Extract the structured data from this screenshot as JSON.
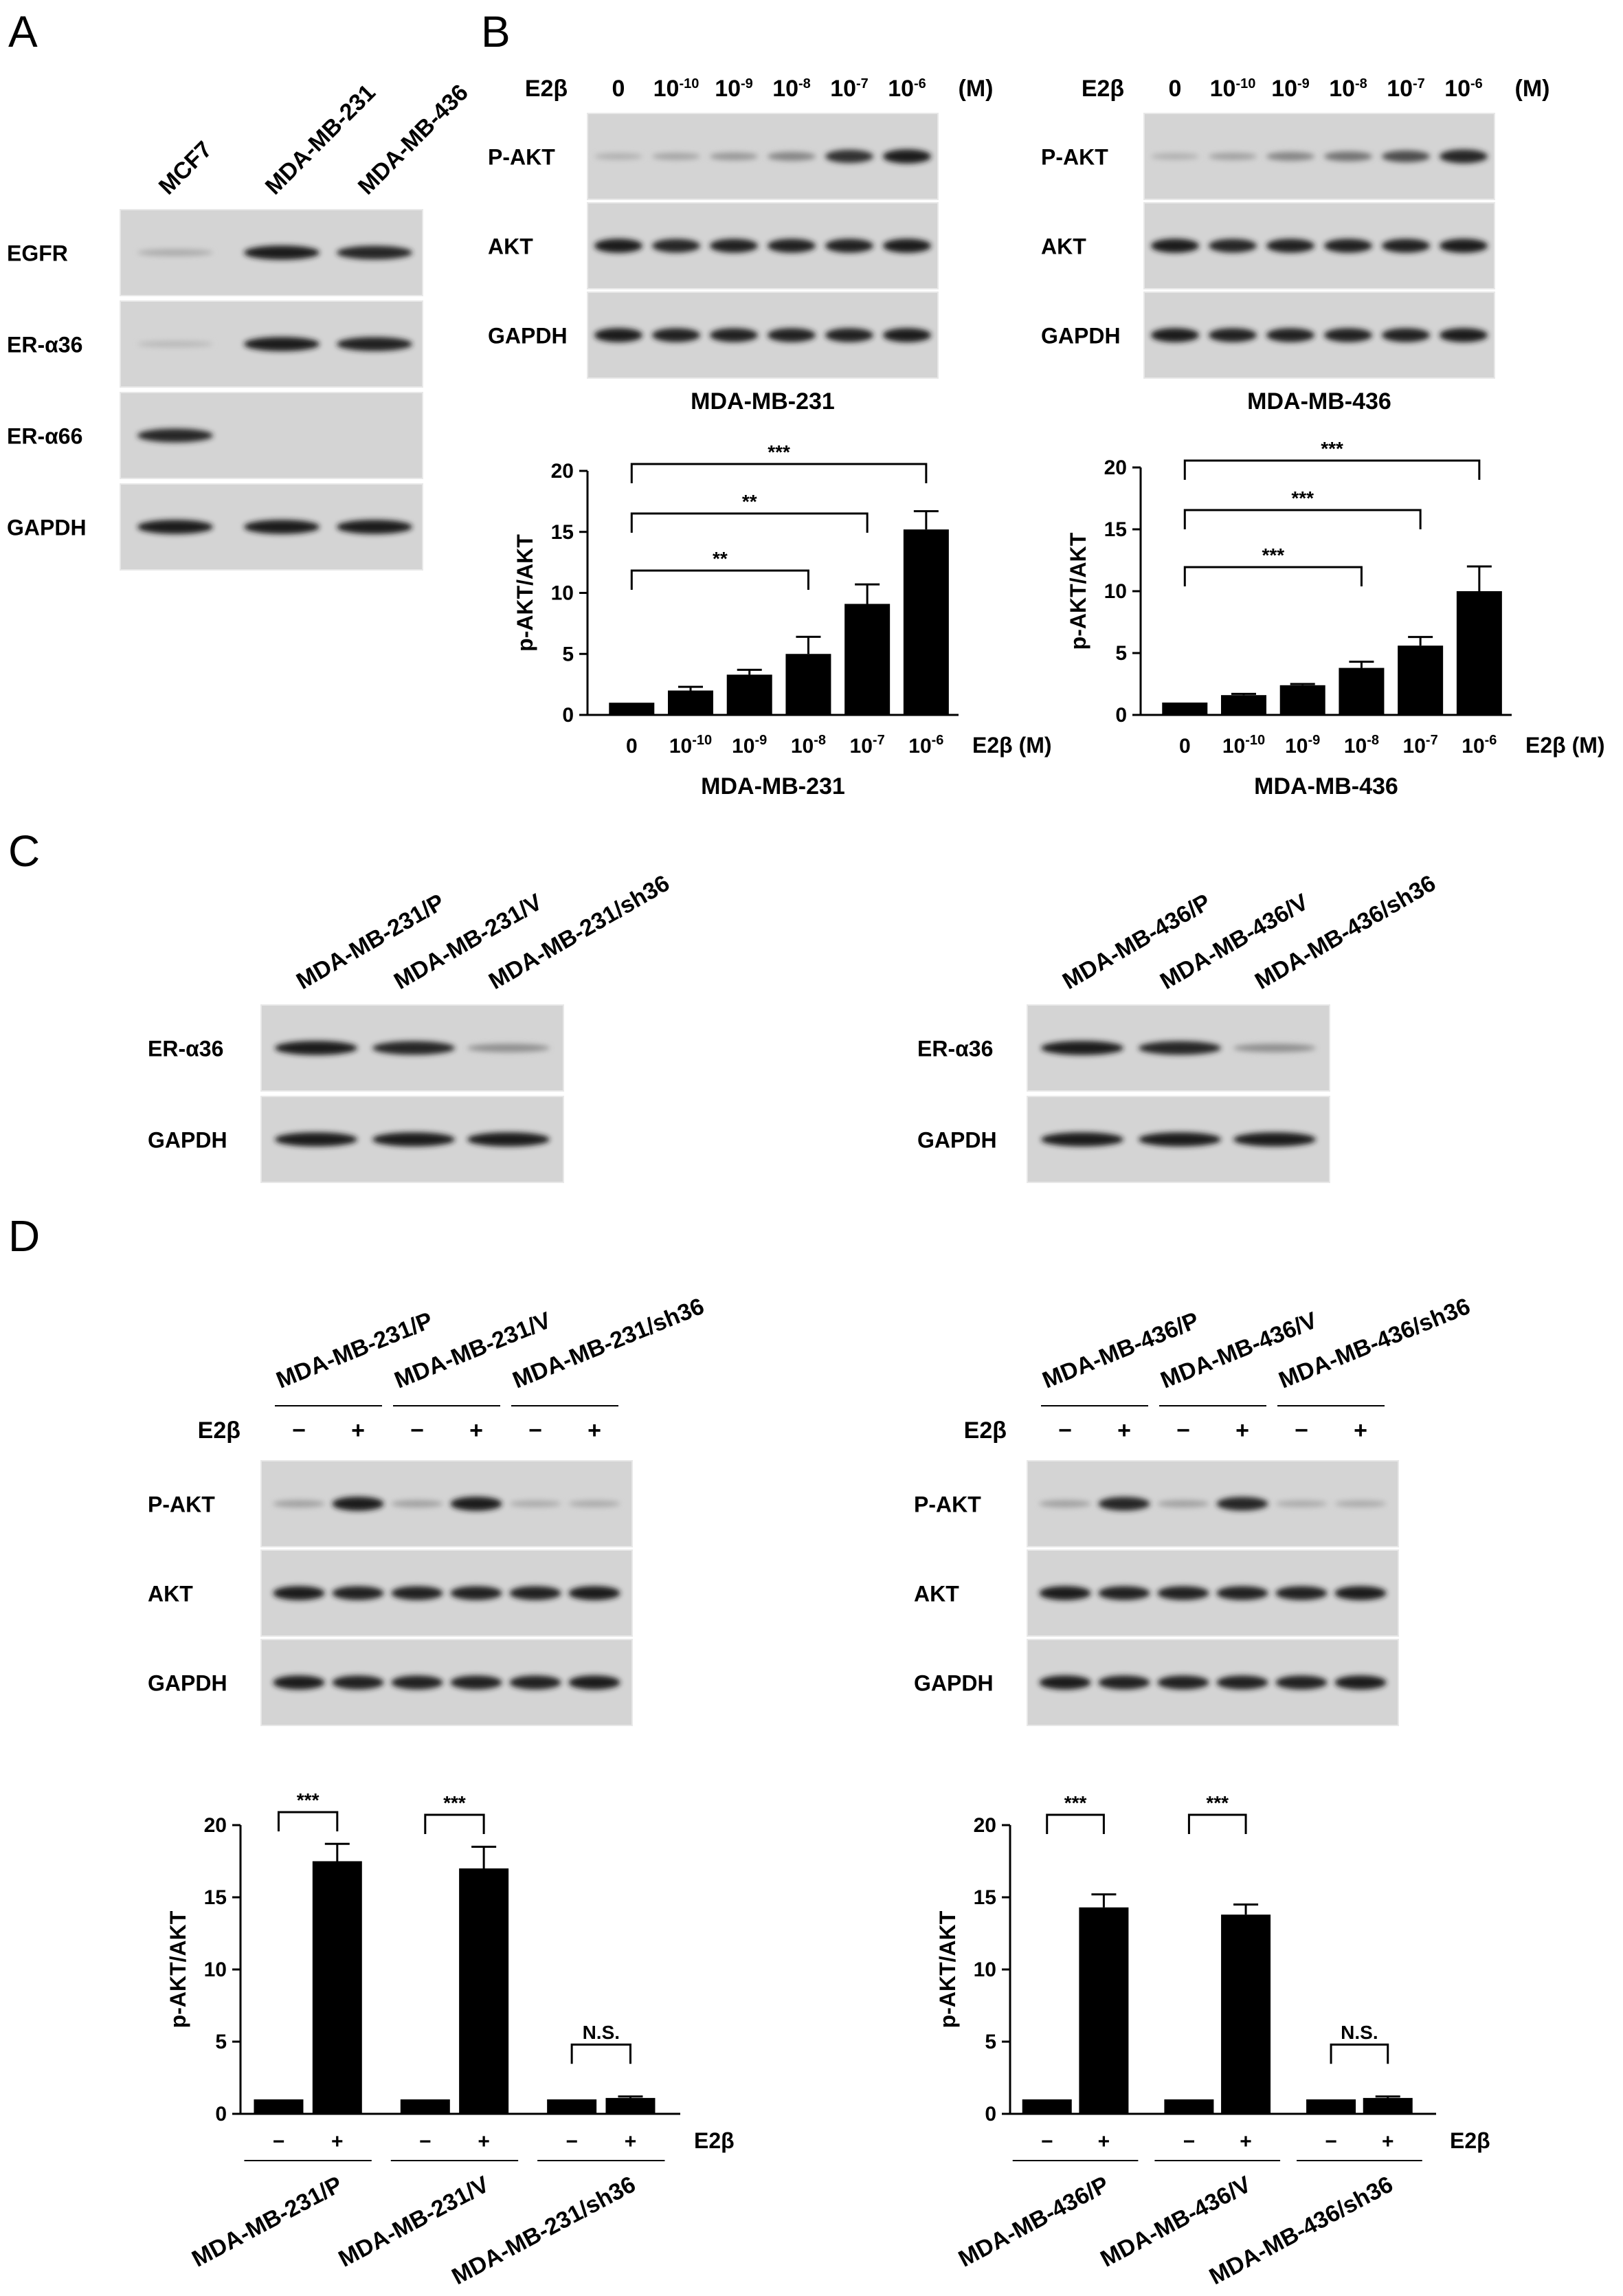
{
  "panels": {
    "A": "A",
    "B": "B",
    "C": "C",
    "D": "D"
  },
  "panelA": {
    "lanes": [
      "MCF7",
      "MDA-MB-231",
      "MDA-MB-436"
    ],
    "rows": [
      "EGFR",
      "ER-α36",
      "ER-α66",
      "GAPDH"
    ],
    "intensity": [
      [
        0.15,
        0.9,
        0.85
      ],
      [
        0.08,
        0.9,
        0.88
      ],
      [
        0.85,
        0.0,
        0.0
      ],
      [
        0.9,
        0.9,
        0.9
      ]
    ]
  },
  "panelB": {
    "treatment_label": "E2β",
    "unit": "(M)",
    "doses": [
      "0",
      "10",
      "10",
      "10",
      "10",
      "10"
    ],
    "exponents": [
      "",
      "-10",
      "-9",
      "-8",
      "-7",
      "-6"
    ],
    "rows": [
      "P-AKT",
      "AKT",
      "GAPDH"
    ],
    "blots": [
      {
        "cell_line": "MDA-MB-231",
        "intensity": [
          [
            0.12,
            0.18,
            0.25,
            0.35,
            0.8,
            0.9
          ],
          [
            0.9,
            0.85,
            0.88,
            0.88,
            0.88,
            0.9
          ],
          [
            0.9,
            0.88,
            0.88,
            0.88,
            0.88,
            0.9
          ]
        ]
      },
      {
        "cell_line": "MDA-MB-436",
        "intensity": [
          [
            0.12,
            0.2,
            0.35,
            0.45,
            0.65,
            0.85
          ],
          [
            0.9,
            0.85,
            0.88,
            0.88,
            0.88,
            0.9
          ],
          [
            0.9,
            0.88,
            0.88,
            0.88,
            0.88,
            0.9
          ]
        ]
      }
    ]
  },
  "panelC": {
    "row_labels": [
      "ER-α36",
      "GAPDH"
    ],
    "blots": [
      {
        "lanes": [
          "MDA-MB-231/P",
          "MDA-MB-231/V",
          "MDA-MB-231/sh36"
        ],
        "intensity": [
          [
            0.9,
            0.85,
            0.3
          ],
          [
            0.9,
            0.9,
            0.9
          ]
        ]
      },
      {
        "lanes": [
          "MDA-MB-436/P",
          "MDA-MB-436/V",
          "MDA-MB-436/sh36"
        ],
        "intensity": [
          [
            0.9,
            0.85,
            0.3
          ],
          [
            0.9,
            0.9,
            0.9
          ]
        ]
      }
    ]
  },
  "panelD": {
    "treatment_label": "E2β",
    "signs": [
      "−",
      "+"
    ],
    "rows": [
      "P-AKT",
      "AKT",
      "GAPDH"
    ],
    "blots": [
      {
        "groups": [
          "MDA-MB-231/P",
          "MDA-MB-231/V",
          "MDA-MB-231/sh36"
        ],
        "intensity": [
          [
            0.2,
            0.9,
            0.2,
            0.9,
            0.15,
            0.15
          ],
          [
            0.9,
            0.88,
            0.88,
            0.88,
            0.88,
            0.9
          ],
          [
            0.9,
            0.88,
            0.88,
            0.88,
            0.88,
            0.9
          ]
        ]
      },
      {
        "groups": [
          "MDA-MB-436/P",
          "MDA-MB-436/V",
          "MDA-MB-436/sh36"
        ],
        "intensity": [
          [
            0.2,
            0.85,
            0.2,
            0.85,
            0.15,
            0.15
          ],
          [
            0.9,
            0.88,
            0.88,
            0.88,
            0.88,
            0.9
          ],
          [
            0.9,
            0.88,
            0.88,
            0.88,
            0.88,
            0.9
          ]
        ]
      }
    ]
  },
  "chart_data": [
    {
      "type": "bar",
      "panel": "B",
      "cell_line": "MDA-MB-231",
      "xlabel": "E2β (M)",
      "ylabel": "p-AKT/AKT",
      "categories": [
        "0",
        "10-10",
        "10-9",
        "10-8",
        "10-7",
        "10-6"
      ],
      "values": [
        1.0,
        2.0,
        3.3,
        5.0,
        9.1,
        15.2
      ],
      "errors": [
        0.0,
        0.3,
        0.4,
        1.4,
        1.6,
        1.5
      ],
      "ylim": [
        0,
        20
      ],
      "yticks": [
        "0",
        "5",
        "10",
        "15",
        "20"
      ],
      "significance": [
        {
          "from": 0,
          "to": 3,
          "label": "**"
        },
        {
          "from": 0,
          "to": 4,
          "label": "**"
        },
        {
          "from": 0,
          "to": 5,
          "label": "***"
        }
      ]
    },
    {
      "type": "bar",
      "panel": "B",
      "cell_line": "MDA-MB-436",
      "xlabel": "E2β (M)",
      "ylabel": "p-AKT/AKT",
      "categories": [
        "0",
        "10-10",
        "10-9",
        "10-8",
        "10-7",
        "10-6"
      ],
      "values": [
        1.0,
        1.6,
        2.4,
        3.8,
        5.6,
        10.0
      ],
      "errors": [
        0.0,
        0.1,
        0.1,
        0.5,
        0.7,
        2.0
      ],
      "ylim": [
        0,
        20
      ],
      "yticks": [
        "0",
        "5",
        "10",
        "15",
        "20"
      ],
      "significance": [
        {
          "from": 0,
          "to": 3,
          "label": "***"
        },
        {
          "from": 0,
          "to": 4,
          "label": "***"
        },
        {
          "from": 0,
          "to": 5,
          "label": "***"
        }
      ]
    },
    {
      "type": "bar",
      "panel": "D",
      "ylabel": "p-AKT/AKT",
      "xlabel": "E2β",
      "groups": [
        "MDA-MB-231/P",
        "MDA-MB-231/V",
        "MDA-MB-231/sh36"
      ],
      "categories": [
        "−",
        "+",
        "−",
        "+",
        "−",
        "+"
      ],
      "values": [
        1.0,
        17.5,
        1.0,
        17.0,
        1.0,
        1.1
      ],
      "errors": [
        0.0,
        1.2,
        0.0,
        1.5,
        0.0,
        0.1
      ],
      "ylim": [
        0,
        20
      ],
      "yticks": [
        "0",
        "5",
        "10",
        "15",
        "20"
      ],
      "significance": [
        {
          "from": 0,
          "to": 1,
          "label": "***"
        },
        {
          "from": 2,
          "to": 3,
          "label": "***"
        },
        {
          "from": 4,
          "to": 5,
          "label": "N.S."
        }
      ]
    },
    {
      "type": "bar",
      "panel": "D",
      "ylabel": "p-AKT/AKT",
      "xlabel": "E2β",
      "groups": [
        "MDA-MB-436/P",
        "MDA-MB-436/V",
        "MDA-MB-436/sh36"
      ],
      "categories": [
        "−",
        "+",
        "−",
        "+",
        "−",
        "+"
      ],
      "values": [
        1.0,
        14.3,
        1.0,
        13.8,
        1.0,
        1.1
      ],
      "errors": [
        0.0,
        0.9,
        0.0,
        0.7,
        0.0,
        0.1
      ],
      "ylim": [
        0,
        20
      ],
      "yticks": [
        "0",
        "5",
        "10",
        "15",
        "20"
      ],
      "significance": [
        {
          "from": 0,
          "to": 1,
          "label": "***"
        },
        {
          "from": 2,
          "to": 3,
          "label": "***"
        },
        {
          "from": 4,
          "to": 5,
          "label": "N.S."
        }
      ]
    }
  ]
}
